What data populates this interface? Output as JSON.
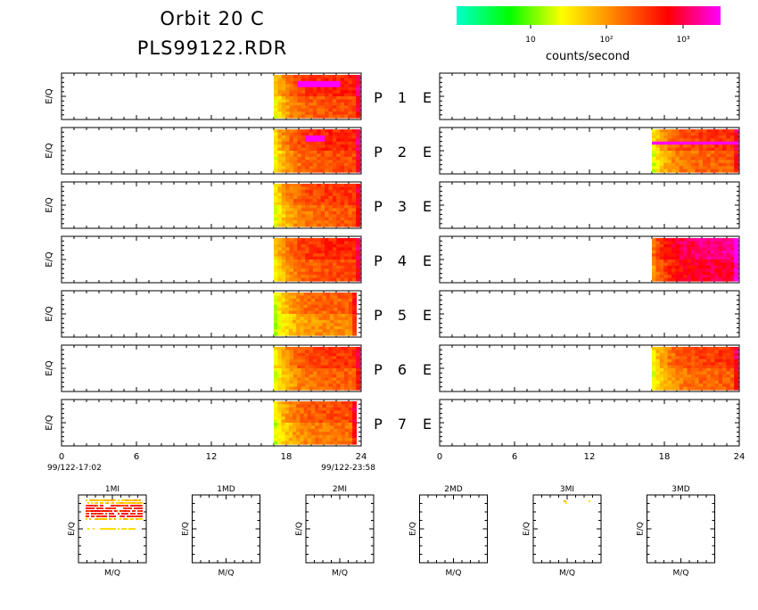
{
  "header": {
    "title": "Orbit 20 C",
    "subtitle": "PLS99122.RDR"
  },
  "colorbar": {
    "colors": [
      "#00ffcc",
      "#00ff00",
      "#ffff00",
      "#ff8000",
      "#ff0000",
      "#ff00ff"
    ],
    "tick_labels": [
      "10",
      "10²",
      "10³"
    ],
    "label": "counts/second",
    "scale": "log"
  },
  "chart_data": [
    {
      "type": "heatmap",
      "name": "time-series-panels",
      "xlim": [
        0,
        24
      ],
      "x_ticks": [
        "0",
        "6",
        "12",
        "18",
        "24"
      ],
      "ylabel": "E/Q",
      "start_label": "99/122-17:02",
      "end_label": "99/122-23:58",
      "rows": [
        {
          "label": "P",
          "number": "1",
          "mid": "E",
          "left": {
            "x_range": [
              17,
              23.9
            ],
            "base_level": 2.6,
            "peak": {
              "x": [
                18.8,
                22.3
              ],
              "level": 4.8
            }
          },
          "right": null
        },
        {
          "label": "P",
          "number": "2",
          "mid": "E",
          "left": {
            "x_range": [
              17,
              23.9
            ],
            "base_level": 2.6,
            "peak": {
              "x": [
                19.5,
                21
              ],
              "level": 4.5
            }
          },
          "right": {
            "x_range": [
              17,
              23.9
            ],
            "base_level": 2.5,
            "band": {
              "level": 4.2
            }
          }
        },
        {
          "label": "P",
          "number": "3",
          "mid": "E",
          "left": {
            "x_range": [
              17,
              23.9
            ],
            "base_level": 2.5
          },
          "right": null
        },
        {
          "label": "P",
          "number": "4",
          "mid": "E",
          "left": {
            "x_range": [
              17,
              23.9
            ],
            "base_level": 2.6
          },
          "right": {
            "x_range": [
              17,
              23.9
            ],
            "base_level": 3.1
          }
        },
        {
          "label": "P",
          "number": "5",
          "mid": "E",
          "left": {
            "x_range": [
              17,
              23.6
            ],
            "base_level": 2.3
          },
          "right": null
        },
        {
          "label": "P",
          "number": "6",
          "mid": "E",
          "left": {
            "x_range": [
              17,
              23.9
            ],
            "base_level": 2.5
          },
          "right": {
            "x_range": [
              17,
              23.9
            ],
            "base_level": 2.5
          }
        },
        {
          "label": "P",
          "number": "7",
          "mid": "E",
          "left": {
            "x_range": [
              17,
              23.6
            ],
            "base_level": 2.4
          },
          "right": null
        }
      ]
    },
    {
      "type": "heatmap",
      "name": "mass-panels",
      "xlabel": "M/Q",
      "ylabel": "E/Q",
      "panels": [
        {
          "title": "1MI",
          "has_data": true
        },
        {
          "title": "1MD",
          "has_data": false
        },
        {
          "title": "2MI",
          "has_data": false
        },
        {
          "title": "2MD",
          "has_data": false
        },
        {
          "title": "3MI",
          "has_data": true
        },
        {
          "title": "3MD",
          "has_data": false
        }
      ]
    }
  ]
}
